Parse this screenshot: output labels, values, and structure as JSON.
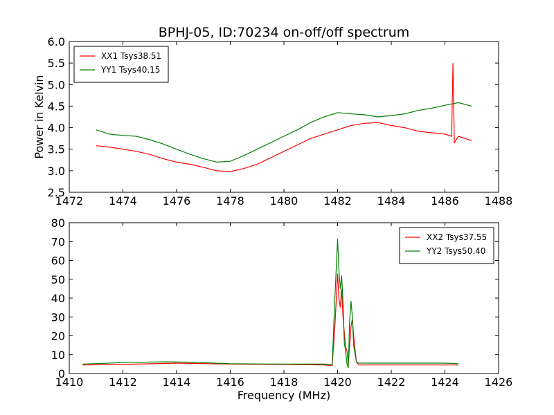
{
  "figure": {
    "title": "BPHJ-05, ID:70234 on-off/off spectrum"
  },
  "chart_data": [
    {
      "type": "line",
      "title": "BPHJ-05, ID:70234 on-off/off spectrum",
      "xlabel": "",
      "ylabel": "Power in Kelvin",
      "xlim": [
        1472,
        1488
      ],
      "ylim": [
        2.5,
        6.0
      ],
      "xticks": [
        "1472",
        "1474",
        "1476",
        "1478",
        "1480",
        "1482",
        "1484",
        "1486",
        "1488"
      ],
      "yticks": [
        "2.5",
        "3.0",
        "3.5",
        "4.0",
        "4.5",
        "5.0",
        "5.5",
        "6.0"
      ],
      "grid": false,
      "legend": "top-left",
      "series": [
        {
          "name": "XX1 Tsys38.51",
          "color": "#ff0000",
          "x": [
            1473.0,
            1473.5,
            1474.0,
            1474.5,
            1475.0,
            1475.5,
            1476.0,
            1476.5,
            1477.0,
            1477.5,
            1478.0,
            1478.5,
            1479.0,
            1479.5,
            1480.0,
            1480.5,
            1481.0,
            1481.5,
            1482.0,
            1482.5,
            1483.0,
            1483.5,
            1484.0,
            1484.5,
            1485.0,
            1485.5,
            1486.0,
            1486.25,
            1486.3,
            1486.35,
            1486.5,
            1487.0
          ],
          "y": [
            3.58,
            3.55,
            3.5,
            3.45,
            3.38,
            3.28,
            3.2,
            3.15,
            3.08,
            3.0,
            2.98,
            3.05,
            3.15,
            3.3,
            3.45,
            3.6,
            3.75,
            3.85,
            3.95,
            4.05,
            4.1,
            4.12,
            4.05,
            4.0,
            3.92,
            3.88,
            3.85,
            3.8,
            5.5,
            3.65,
            3.8,
            3.7
          ]
        },
        {
          "name": "YY1 Tsys40.15",
          "color": "#008000",
          "x": [
            1473.0,
            1473.5,
            1474.0,
            1474.5,
            1475.0,
            1475.5,
            1476.0,
            1476.5,
            1477.0,
            1477.5,
            1478.0,
            1478.5,
            1479.0,
            1479.5,
            1480.0,
            1480.5,
            1481.0,
            1481.5,
            1482.0,
            1482.5,
            1483.0,
            1483.5,
            1484.0,
            1484.5,
            1485.0,
            1485.5,
            1486.0,
            1486.5,
            1487.0
          ],
          "y": [
            3.95,
            3.85,
            3.82,
            3.8,
            3.72,
            3.62,
            3.5,
            3.38,
            3.28,
            3.2,
            3.22,
            3.35,
            3.5,
            3.65,
            3.8,
            3.95,
            4.12,
            4.25,
            4.35,
            4.32,
            4.3,
            4.25,
            4.28,
            4.32,
            4.4,
            4.45,
            4.52,
            4.58,
            4.5
          ]
        }
      ]
    },
    {
      "type": "line",
      "title": "",
      "xlabel": "Frequency (MHz)",
      "ylabel": "",
      "xlim": [
        1410,
        1426
      ],
      "ylim": [
        0,
        80
      ],
      "xticks": [
        "1410",
        "1412",
        "1414",
        "1416",
        "1418",
        "1420",
        "1422",
        "1424",
        "1426"
      ],
      "yticks": [
        "0",
        "10",
        "20",
        "30",
        "40",
        "50",
        "60",
        "70",
        "80"
      ],
      "grid": false,
      "legend": "top-right",
      "series": [
        {
          "name": "XX2 Tsys37.55",
          "color": "#ff0000",
          "x": [
            1410.5,
            1412.0,
            1414.0,
            1416.0,
            1418.0,
            1419.5,
            1419.8,
            1419.9,
            1420.0,
            1420.05,
            1420.1,
            1420.15,
            1420.2,
            1420.3,
            1420.35,
            1420.4,
            1420.45,
            1420.5,
            1420.55,
            1420.6,
            1420.7,
            1420.8,
            1421.0,
            1422.0,
            1424.0,
            1424.5
          ],
          "y": [
            4.5,
            4.8,
            5.5,
            5.0,
            4.8,
            4.5,
            4.2,
            25.0,
            53.0,
            40.0,
            35.0,
            45.0,
            30.0,
            14.0,
            12.0,
            5.0,
            15.0,
            25.0,
            29.0,
            20.0,
            6.0,
            4.5,
            4.5,
            4.5,
            4.5,
            4.5
          ]
        },
        {
          "name": "YY2 Tsys50.40",
          "color": "#008000",
          "x": [
            1410.5,
            1412.0,
            1413.5,
            1414.5,
            1416.0,
            1418.0,
            1419.5,
            1419.8,
            1419.9,
            1420.0,
            1420.05,
            1420.1,
            1420.15,
            1420.2,
            1420.25,
            1420.3,
            1420.35,
            1420.4,
            1420.45,
            1420.5,
            1420.55,
            1420.6,
            1420.7,
            1420.8,
            1421.0,
            1422.0,
            1424.0,
            1424.5
          ],
          "y": [
            5.0,
            5.8,
            6.2,
            6.0,
            5.2,
            5.0,
            5.0,
            4.8,
            40.0,
            71.5,
            55.0,
            45.0,
            52.0,
            38.0,
            16.0,
            12.0,
            5.0,
            3.0,
            28.0,
            38.5,
            30.0,
            15.0,
            6.0,
            5.5,
            5.5,
            5.5,
            5.5,
            5.2
          ]
        }
      ]
    }
  ]
}
